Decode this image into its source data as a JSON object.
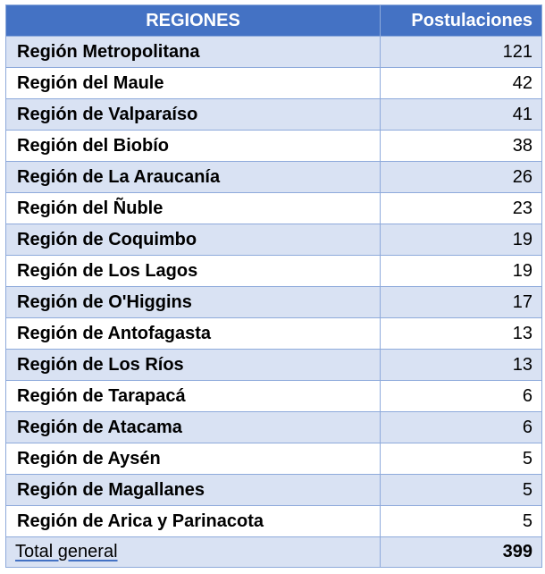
{
  "table": {
    "headers": {
      "region": "REGIONES",
      "count": "Postulaciones"
    },
    "rows": [
      {
        "region": "Región Metropolitana",
        "count": "121"
      },
      {
        "region": "Región del Maule",
        "count": "42"
      },
      {
        "region": "Región de Valparaíso",
        "count": "41"
      },
      {
        "region": "Región del Biobío",
        "count": "38"
      },
      {
        "region": "Región de La Araucanía",
        "count": "26"
      },
      {
        "region": "Región del Ñuble",
        "count": "23"
      },
      {
        "region": "Región de Coquimbo",
        "count": "19"
      },
      {
        "region": "Región de Los Lagos",
        "count": "19"
      },
      {
        "region": "Región de O'Higgins",
        "count": "17"
      },
      {
        "region": "Región de Antofagasta",
        "count": "13"
      },
      {
        "region": "Región de Los Ríos",
        "count": "13"
      },
      {
        "region": "Región de Tarapacá",
        "count": "6"
      },
      {
        "region": "Región de Atacama",
        "count": "6"
      },
      {
        "region": "Región de Aysén",
        "count": "5"
      },
      {
        "region": " Región de Magallanes",
        "count": "5"
      },
      {
        "region": "Región de Arica y Parinacota",
        "count": "5"
      }
    ],
    "total": {
      "label": "Total general",
      "count": "399"
    }
  },
  "colors": {
    "header_bg": "#4472c4",
    "band_bg": "#d9e2f3",
    "border": "#8eaadb"
  }
}
